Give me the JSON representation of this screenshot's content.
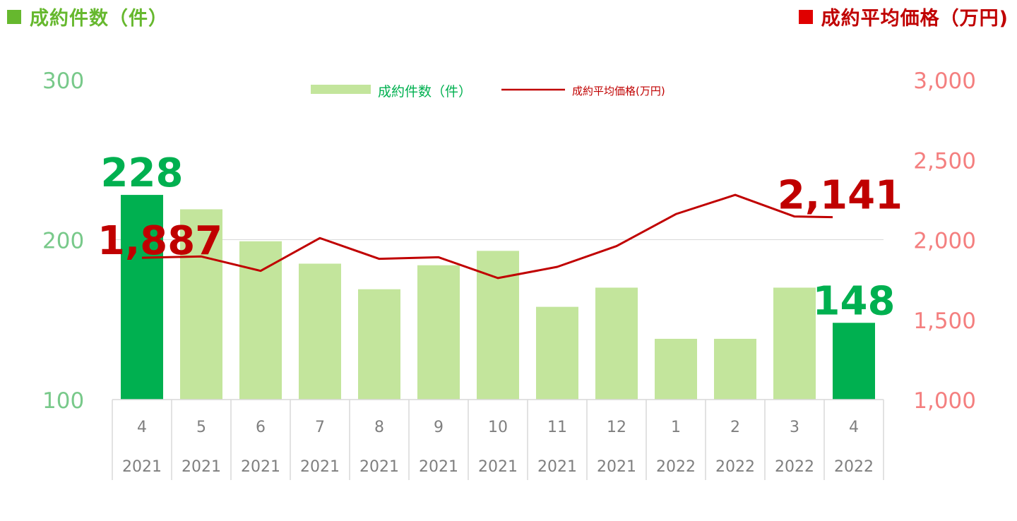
{
  "header": {
    "left_title": "成約件数（件）",
    "right_title": "成約平均価格（万円)"
  },
  "colors": {
    "bar": "#c3e59c",
    "bar_highlight": "#00b050",
    "line": "#c00000",
    "left_axis": "#78c98a",
    "right_axis": "#f47f7f",
    "header_left": "#66b82e",
    "header_right": "#c00000"
  },
  "chart_data": {
    "type": "bar+line",
    "categories": [
      {
        "month": "4",
        "year": "2021"
      },
      {
        "month": "5",
        "year": "2021"
      },
      {
        "month": "6",
        "year": "2021"
      },
      {
        "month": "7",
        "year": "2021"
      },
      {
        "month": "8",
        "year": "2021"
      },
      {
        "month": "9",
        "year": "2021"
      },
      {
        "month": "10",
        "year": "2021"
      },
      {
        "month": "11",
        "year": "2021"
      },
      {
        "month": "12",
        "year": "2021"
      },
      {
        "month": "1",
        "year": "2022"
      },
      {
        "month": "2",
        "year": "2022"
      },
      {
        "month": "3",
        "year": "2022"
      },
      {
        "month": "4",
        "year": "2022"
      }
    ],
    "series": [
      {
        "name": "成約件数（件）",
        "type": "bar",
        "axis": "left",
        "values": [
          228,
          219,
          199,
          185,
          169,
          184,
          193,
          158,
          170,
          138,
          138,
          170,
          148
        ],
        "highlight_indices": [
          0,
          12
        ]
      },
      {
        "name": "成約平均価格(万円)",
        "type": "line",
        "axis": "right",
        "values": [
          1887,
          1895,
          1805,
          2010,
          1880,
          1890,
          1760,
          1830,
          1960,
          2160,
          2280,
          2145,
          2141
        ]
      }
    ],
    "left_axis": {
      "ylim": [
        100,
        300
      ],
      "ticks": [
        "100",
        "200",
        "300"
      ]
    },
    "right_axis": {
      "ylim": [
        1000,
        3000
      ],
      "ticks": [
        "1,000",
        "1,500",
        "2,000",
        "2,500",
        "3,000"
      ]
    },
    "data_labels": [
      {
        "text": "228",
        "series": 0,
        "index": 0
      },
      {
        "text": "148",
        "series": 0,
        "index": 12
      },
      {
        "text": "1,887",
        "series": 1,
        "index": 0
      },
      {
        "text": "2,141",
        "series": 1,
        "index": 12
      }
    ],
    "gridlines": [
      "200"
    ],
    "legend": "top-center"
  }
}
